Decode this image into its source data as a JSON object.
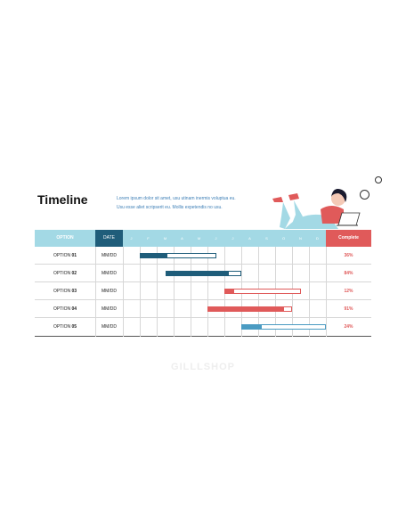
{
  "title": "Timeline",
  "description": [
    "Lorem ipsum dolor sit amet, usu utinam inermis voluptua eu.",
    "Usu esse aliet scripserit eu. Mollis expetendis no usu."
  ],
  "header": {
    "option": "OPTION",
    "date": "DATE",
    "months": [
      "J",
      "F",
      "M",
      "A",
      "M",
      "J",
      "J",
      "A",
      "S",
      "O",
      "N",
      "D"
    ],
    "complete": "Complete"
  },
  "rows": [
    {
      "option": "OPTION",
      "num": "01",
      "date": "MM/DD",
      "percent": "36%",
      "progress": 0.36,
      "color": "#1f5d7a",
      "start_month": 1,
      "end_month": 5.5
    },
    {
      "option": "OPTION",
      "num": "02",
      "date": "MM/DD",
      "percent": "84%",
      "progress": 0.84,
      "color": "#1f5d7a",
      "start_month": 2.5,
      "end_month": 7
    },
    {
      "option": "OPTION",
      "num": "03",
      "date": "MM/DD",
      "percent": "12%",
      "progress": 0.12,
      "color": "#e05a5a",
      "start_month": 6,
      "end_month": 10.5
    },
    {
      "option": "OPTION",
      "num": "04",
      "date": "MM/DD",
      "percent": "91%",
      "progress": 0.91,
      "color": "#e05a5a",
      "start_month": 5,
      "end_month": 10
    },
    {
      "option": "OPTION",
      "num": "05",
      "date": "MM/DD",
      "percent": "24%",
      "progress": 0.24,
      "color": "#4a9bc2",
      "start_month": 7,
      "end_month": 12
    }
  ],
  "colors": {
    "header": "#a3d9e5",
    "date_header": "#1f5d7a",
    "complete_header": "#e05a5a"
  },
  "watermark": "GILLLSHOP"
}
